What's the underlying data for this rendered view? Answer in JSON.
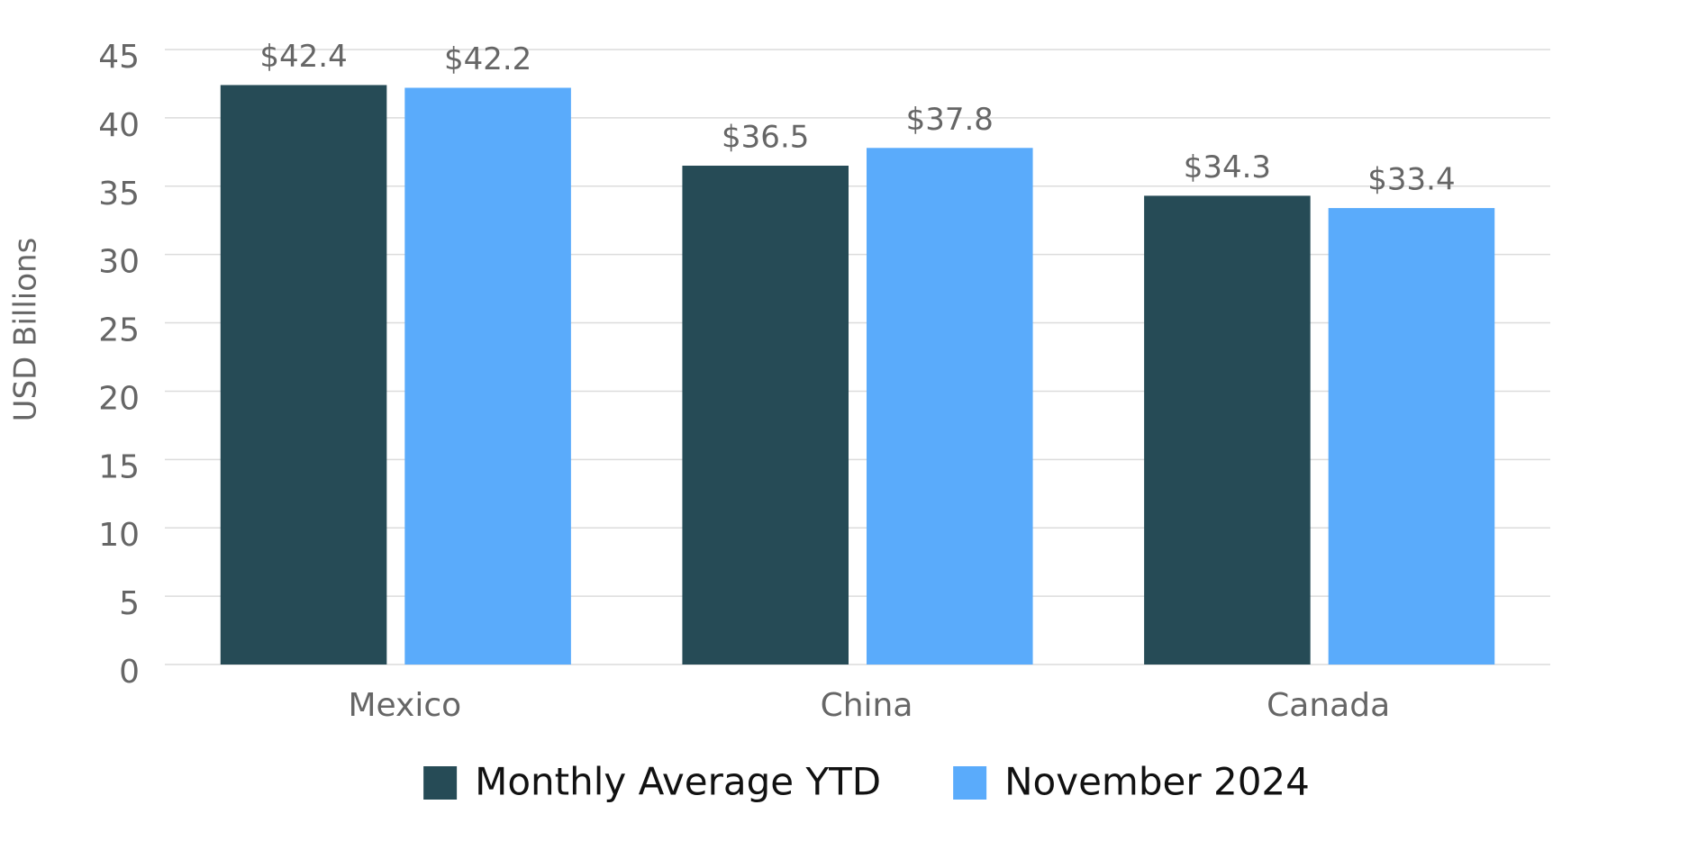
{
  "chart_data": {
    "type": "bar",
    "y_label": "USD Billions",
    "categories": [
      "Mexico",
      "China",
      "Canada"
    ],
    "series": [
      {
        "name": "Monthly Average YTD",
        "color": "#264b56",
        "values": [
          42.4,
          36.5,
          34.3
        ],
        "value_labels": [
          "$42.4",
          "$36.5",
          "$34.3"
        ]
      },
      {
        "name": "November 2024",
        "color": "#5aabfb",
        "values": [
          42.2,
          37.8,
          33.4
        ],
        "value_labels": [
          "$42.2",
          "$37.8",
          "$33.4"
        ]
      }
    ],
    "ylim": [
      0,
      45
    ],
    "yticks": [
      0,
      5,
      10,
      15,
      20,
      25,
      30,
      35,
      40,
      45
    ],
    "grid": true,
    "legend": "bottom"
  }
}
